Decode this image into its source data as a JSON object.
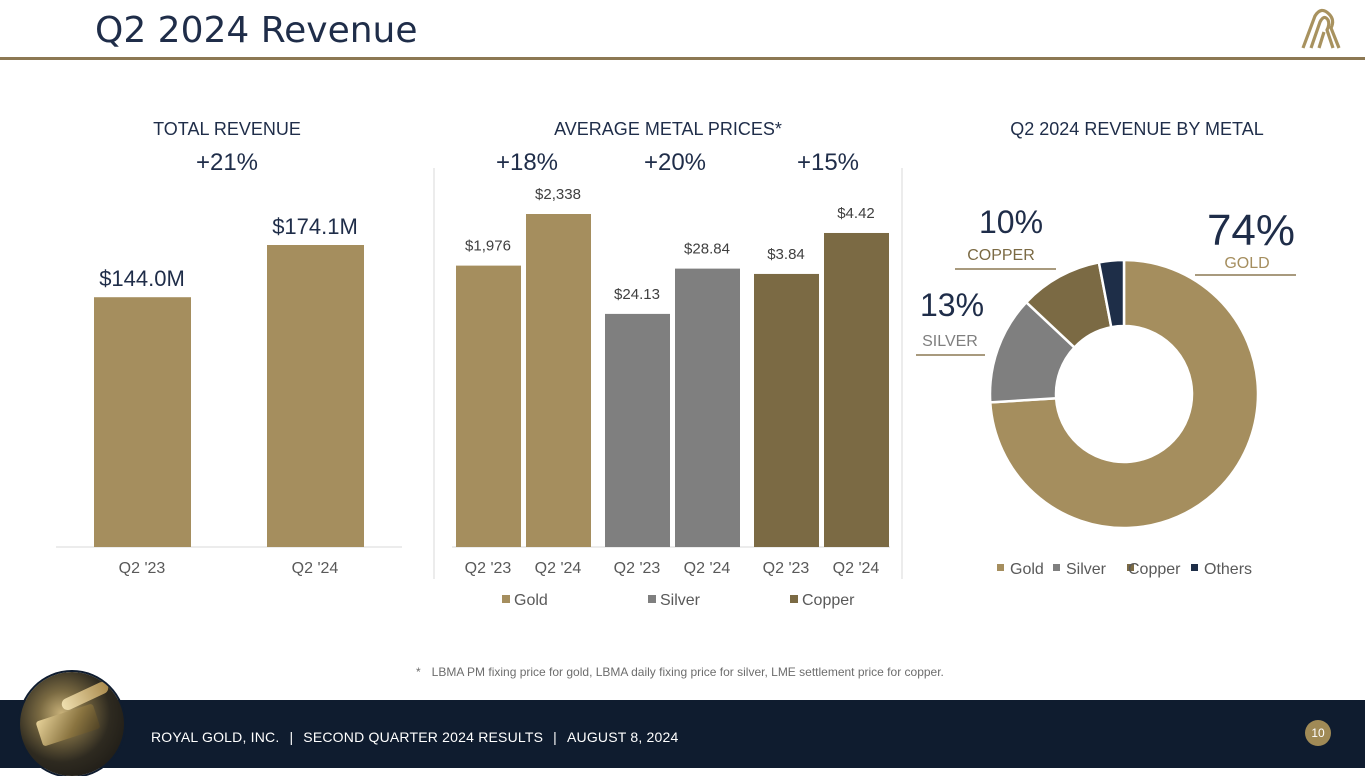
{
  "page": {
    "title": "Q2 2024 Revenue",
    "footnote_star": "*",
    "footnote": "LBMA PM fixing price for gold, LBMA daily fixing price for silver, LME settlement price for copper.",
    "footer": {
      "company": "ROYAL GOLD, INC.",
      "separator": "|",
      "report": "SECOND QUARTER 2024 RESULTS",
      "date": "AUGUST 8, 2024"
    },
    "page_number": "10",
    "logo_icon": "royal-gold-logo-icon",
    "colors": {
      "gold": "#a58e5e",
      "silver": "#7f7f7f",
      "copper": "#7b6a44",
      "others": "#1e2e48",
      "navy_text": "#1f2d49",
      "footer_bg": "#0f1c2f"
    }
  },
  "chart_data": [
    {
      "id": "total-revenue",
      "type": "bar",
      "title": "TOTAL REVENUE",
      "change": "+21%",
      "categories": [
        "Q2 '23",
        "Q2 '24"
      ],
      "values": [
        144.0,
        174.1
      ],
      "labels": [
        "$144.0M",
        "$174.1M"
      ],
      "unit": "$M",
      "ylim": [
        0,
        210
      ]
    },
    {
      "id": "average-metal-prices",
      "type": "bar",
      "title": "AVERAGE METAL PRICES*",
      "groups": [
        {
          "name": "Gold",
          "change": "+18%",
          "categories": [
            "Q2 '23",
            "Q2 '24"
          ],
          "values": [
            1976,
            2338
          ],
          "labels": [
            "$1,976",
            "$2,338"
          ],
          "relative": [
            0.845,
            1.0
          ]
        },
        {
          "name": "Silver",
          "change": "+20%",
          "categories": [
            "Q2 '23",
            "Q2 '24"
          ],
          "values": [
            24.13,
            28.84
          ],
          "labels": [
            "$24.13",
            "$28.84"
          ],
          "relative": [
            0.7,
            0.836
          ]
        },
        {
          "name": "Copper",
          "change": "+15%",
          "categories": [
            "Q2 '23",
            "Q2 '24"
          ],
          "values": [
            3.84,
            4.42
          ],
          "labels": [
            "$3.84",
            "$4.42"
          ],
          "relative": [
            0.82,
            0.943
          ]
        }
      ],
      "legend": [
        "Gold",
        "Silver",
        "Copper"
      ]
    },
    {
      "id": "revenue-by-metal",
      "type": "pie",
      "title": "Q2 2024 REVENUE BY METAL",
      "labels": [
        "Gold",
        "Silver",
        "Copper",
        "Others"
      ],
      "values": [
        74,
        13,
        10,
        3
      ],
      "callouts": [
        {
          "metal": "Gold",
          "pct": "74%",
          "name": "GOLD"
        },
        {
          "metal": "Silver",
          "pct": "13%",
          "name": "SILVER"
        },
        {
          "metal": "Copper",
          "pct": "10%",
          "name": "COPPER"
        }
      ],
      "legend": [
        "Gold",
        "Silver",
        "Copper",
        "Others"
      ]
    }
  ]
}
